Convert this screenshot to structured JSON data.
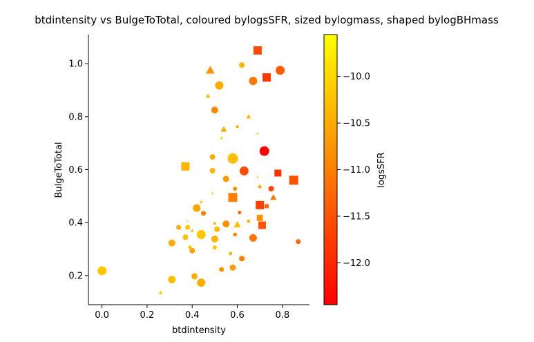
{
  "chart_data": {
    "type": "scatter",
    "title": "btdintensity vs BulgeToTotal, coloured bylogsSFR, sized bylogmass, shaped bylogBHmass",
    "xlabel": "btdintensity",
    "ylabel": "BulgeToTotal",
    "colorbar_label": "logsSFR",
    "xlim": [
      -0.06,
      0.92
    ],
    "ylim": [
      0.09,
      1.11
    ],
    "xticks": [
      0.0,
      0.2,
      0.4,
      0.6,
      0.8
    ],
    "xtick_labels": [
      "0.0",
      "0.2",
      "0.4",
      "0.6",
      "0.8"
    ],
    "yticks": [
      0.2,
      0.4,
      0.6,
      0.8,
      1.0
    ],
    "ytick_labels": [
      "0.2",
      "0.4",
      "0.6",
      "0.8",
      "1.0"
    ],
    "colorbar_range": [
      -12.45,
      -9.55
    ],
    "colorbar_ticks": [
      -10.0,
      -10.5,
      -11.0,
      -11.5,
      -12.0
    ],
    "colorbar_tick_labels": [
      "−10.0",
      "−10.5",
      "−11.0",
      "−11.5",
      "−12.0"
    ],
    "colormap": [
      "#ffff00",
      "#ffcc00",
      "#ff9900",
      "#ff6600",
      "#ff3300",
      "#ff0000"
    ],
    "points": [
      {
        "x": 0.69,
        "y": 1.05,
        "c": -11.6,
        "s": 12,
        "m": "square"
      },
      {
        "x": 0.79,
        "y": 0.975,
        "c": -11.4,
        "s": 13,
        "m": "circle"
      },
      {
        "x": 0.48,
        "y": 0.975,
        "c": -10.8,
        "s": 11,
        "m": "triangle"
      },
      {
        "x": 0.62,
        "y": 0.995,
        "c": -10.4,
        "s": 8,
        "m": "circle"
      },
      {
        "x": 0.73,
        "y": 0.948,
        "c": -11.8,
        "s": 12,
        "m": "square"
      },
      {
        "x": 0.67,
        "y": 0.935,
        "c": -11.1,
        "s": 12,
        "m": "circle"
      },
      {
        "x": 0.52,
        "y": 0.918,
        "c": -10.5,
        "s": 12,
        "m": "circle"
      },
      {
        "x": 0.47,
        "y": 0.878,
        "c": -10.3,
        "s": 6,
        "m": "triangle"
      },
      {
        "x": 0.5,
        "y": 0.825,
        "c": -10.9,
        "s": 10,
        "m": "circle"
      },
      {
        "x": 0.65,
        "y": 0.8,
        "c": -10.4,
        "s": 6,
        "m": "triangle"
      },
      {
        "x": 0.6,
        "y": 0.762,
        "c": -10.6,
        "s": 4,
        "m": "circle"
      },
      {
        "x": 0.54,
        "y": 0.752,
        "c": -10.5,
        "s": 8,
        "m": "triangle"
      },
      {
        "x": 0.69,
        "y": 0.737,
        "c": -10.4,
        "s": 3,
        "m": "triangle"
      },
      {
        "x": 0.53,
        "y": 0.72,
        "c": -10.1,
        "s": 4,
        "m": "triangle"
      },
      {
        "x": 0.72,
        "y": 0.67,
        "c": -12.45,
        "s": 14,
        "m": "circle"
      },
      {
        "x": 0.49,
        "y": 0.648,
        "c": -10.5,
        "s": 8,
        "m": "circle"
      },
      {
        "x": 0.58,
        "y": 0.642,
        "c": -10.3,
        "s": 15,
        "m": "circle"
      },
      {
        "x": 0.37,
        "y": 0.612,
        "c": -10.4,
        "s": 12,
        "m": "square"
      },
      {
        "x": 0.63,
        "y": 0.595,
        "c": -11.6,
        "s": 13,
        "m": "circle"
      },
      {
        "x": 0.49,
        "y": 0.596,
        "c": -10.4,
        "s": 8,
        "m": "circle"
      },
      {
        "x": 0.78,
        "y": 0.587,
        "c": -11.9,
        "s": 10,
        "m": "square"
      },
      {
        "x": 0.55,
        "y": 0.565,
        "c": -10.7,
        "s": 9,
        "m": "circle"
      },
      {
        "x": 0.85,
        "y": 0.56,
        "c": -11.5,
        "s": 13,
        "m": "square"
      },
      {
        "x": 0.69,
        "y": 0.573,
        "c": -10.2,
        "s": 3,
        "m": "triangle"
      },
      {
        "x": 0.7,
        "y": 0.535,
        "c": -10.5,
        "s": 5,
        "m": "circle"
      },
      {
        "x": 0.59,
        "y": 0.528,
        "c": -10.8,
        "s": 6,
        "m": "circle"
      },
      {
        "x": 0.75,
        "y": 0.528,
        "c": -11.7,
        "s": 8,
        "m": "circle"
      },
      {
        "x": 0.49,
        "y": 0.51,
        "c": -10.2,
        "s": 3,
        "m": "triangle"
      },
      {
        "x": 0.58,
        "y": 0.495,
        "c": -11.0,
        "s": 13,
        "m": "square"
      },
      {
        "x": 0.76,
        "y": 0.495,
        "c": -11.1,
        "s": 8,
        "m": "triangle"
      },
      {
        "x": 0.44,
        "y": 0.478,
        "c": -10.3,
        "s": 4,
        "m": "triangle"
      },
      {
        "x": 0.7,
        "y": 0.466,
        "c": -11.7,
        "s": 12,
        "m": "square"
      },
      {
        "x": 0.73,
        "y": 0.462,
        "c": -11.3,
        "s": 6,
        "m": "square"
      },
      {
        "x": 0.42,
        "y": 0.455,
        "c": -10.6,
        "s": 11,
        "m": "circle"
      },
      {
        "x": 0.61,
        "y": 0.438,
        "c": -11.4,
        "s": 5,
        "m": "circle"
      },
      {
        "x": 0.45,
        "y": 0.435,
        "c": -11.0,
        "s": 7,
        "m": "circle"
      },
      {
        "x": 0.7,
        "y": 0.418,
        "c": -10.8,
        "s": 9,
        "m": "square"
      },
      {
        "x": 0.38,
        "y": 0.406,
        "c": -10.3,
        "s": 2,
        "m": "triangle"
      },
      {
        "x": 0.65,
        "y": 0.405,
        "c": -10.4,
        "s": 5,
        "m": "circle"
      },
      {
        "x": 0.55,
        "y": 0.395,
        "c": -10.8,
        "s": 10,
        "m": "circle"
      },
      {
        "x": 0.5,
        "y": 0.397,
        "c": -10.3,
        "s": 4,
        "m": "circle"
      },
      {
        "x": 0.6,
        "y": 0.392,
        "c": -10.3,
        "s": 9,
        "m": "triangle"
      },
      {
        "x": 0.71,
        "y": 0.39,
        "c": -11.5,
        "s": 11,
        "m": "square"
      },
      {
        "x": 0.34,
        "y": 0.382,
        "c": -10.5,
        "s": 7,
        "m": "circle"
      },
      {
        "x": 0.38,
        "y": 0.382,
        "c": -10.2,
        "s": 7,
        "m": "circle"
      },
      {
        "x": 0.51,
        "y": 0.375,
        "c": -10.3,
        "s": 8,
        "m": "circle"
      },
      {
        "x": 0.4,
        "y": 0.37,
        "c": -10.4,
        "s": 4,
        "m": "triangle"
      },
      {
        "x": 0.44,
        "y": 0.355,
        "c": -10.2,
        "s": 13,
        "m": "circle"
      },
      {
        "x": 0.59,
        "y": 0.355,
        "c": -10.9,
        "s": 5,
        "m": "square"
      },
      {
        "x": 0.37,
        "y": 0.345,
        "c": -10.3,
        "s": 8,
        "m": "circle"
      },
      {
        "x": 0.5,
        "y": 0.338,
        "c": -10.4,
        "s": 10,
        "m": "circle"
      },
      {
        "x": 0.67,
        "y": 0.342,
        "c": -11.1,
        "s": 11,
        "m": "circle"
      },
      {
        "x": 0.87,
        "y": 0.328,
        "c": -11.3,
        "s": 7,
        "m": "circle"
      },
      {
        "x": 0.31,
        "y": 0.323,
        "c": -10.5,
        "s": 10,
        "m": "circle"
      },
      {
        "x": 0.39,
        "y": 0.307,
        "c": -10.2,
        "s": 5,
        "m": "circle"
      },
      {
        "x": 0.5,
        "y": 0.306,
        "c": -10.2,
        "s": 6,
        "m": "circle"
      },
      {
        "x": 0.4,
        "y": 0.294,
        "c": -10.6,
        "s": 8,
        "m": "circle"
      },
      {
        "x": 0.57,
        "y": 0.283,
        "c": -10.4,
        "s": 5,
        "m": "circle"
      },
      {
        "x": 0.62,
        "y": 0.264,
        "c": -11.0,
        "s": 8,
        "m": "circle"
      },
      {
        "x": 0.58,
        "y": 0.23,
        "c": -10.7,
        "s": 9,
        "m": "circle"
      },
      {
        "x": 0.53,
        "y": 0.223,
        "c": -10.8,
        "s": 7,
        "m": "circle"
      },
      {
        "x": 0.0,
        "y": 0.218,
        "c": -10.2,
        "s": 13,
        "m": "circle"
      },
      {
        "x": 0.41,
        "y": 0.197,
        "c": -10.5,
        "s": 9,
        "m": "circle"
      },
      {
        "x": 0.31,
        "y": 0.185,
        "c": -10.3,
        "s": 11,
        "m": "circle"
      },
      {
        "x": 0.44,
        "y": 0.173,
        "c": -10.5,
        "s": 12,
        "m": "circle"
      },
      {
        "x": 0.26,
        "y": 0.135,
        "c": -10.2,
        "s": 5,
        "m": "triangle"
      }
    ]
  }
}
